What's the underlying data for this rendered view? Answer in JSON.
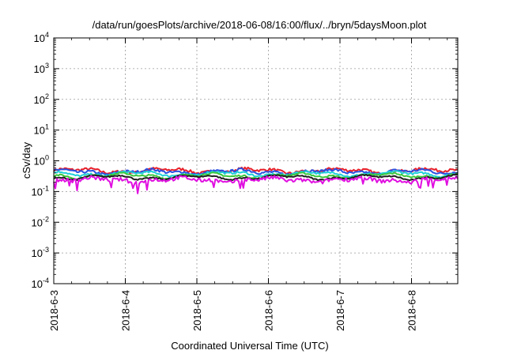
{
  "chart_data": {
    "type": "line",
    "title": "/data/run/goesPlots/archive/2018-06-08/16:00/flux/../bryn/5daysMoon.plot",
    "xlabel": "Coordinated Universal Time (UTC)",
    "ylabel": "cSv/day",
    "yscale": "log",
    "ylim": [
      0.0001,
      10000
    ],
    "xlim": [
      "2018-06-03",
      "2018-06-08 16:00"
    ],
    "x_ticks": [
      "2018-6-3",
      "2018-6-4",
      "2018-6-5",
      "2018-6-6",
      "2018-6-7",
      "2018-6-8"
    ],
    "y_ticks": [
      {
        "base": "10",
        "exp": "-4",
        "value": 0.0001
      },
      {
        "base": "10",
        "exp": "-3",
        "value": 0.001
      },
      {
        "base": "10",
        "exp": "-2",
        "value": 0.01
      },
      {
        "base": "10",
        "exp": "-1",
        "value": 0.1
      },
      {
        "base": "10",
        "exp": "0",
        "value": 1
      },
      {
        "base": "10",
        "exp": "1",
        "value": 10
      },
      {
        "base": "10",
        "exp": "2",
        "value": 100
      },
      {
        "base": "10",
        "exp": "3",
        "value": 1000
      },
      {
        "base": "10",
        "exp": "4",
        "value": 10000
      }
    ],
    "grid": true,
    "series": [
      {
        "color": "#e8202a",
        "level": 0.48,
        "noise": 0.1
      },
      {
        "color": "#2a50e0",
        "level": 0.44,
        "noise": 0.1
      },
      {
        "color": "#20d0d8",
        "level": 0.38,
        "noise": 0.07
      },
      {
        "color": "#3cc83c",
        "level": 0.33,
        "noise": 0.06
      },
      {
        "color": "#202020",
        "level": 0.29,
        "noise": 0.05
      },
      {
        "color": "#e010e0",
        "level": 0.24,
        "noise": 0.14
      }
    ]
  }
}
